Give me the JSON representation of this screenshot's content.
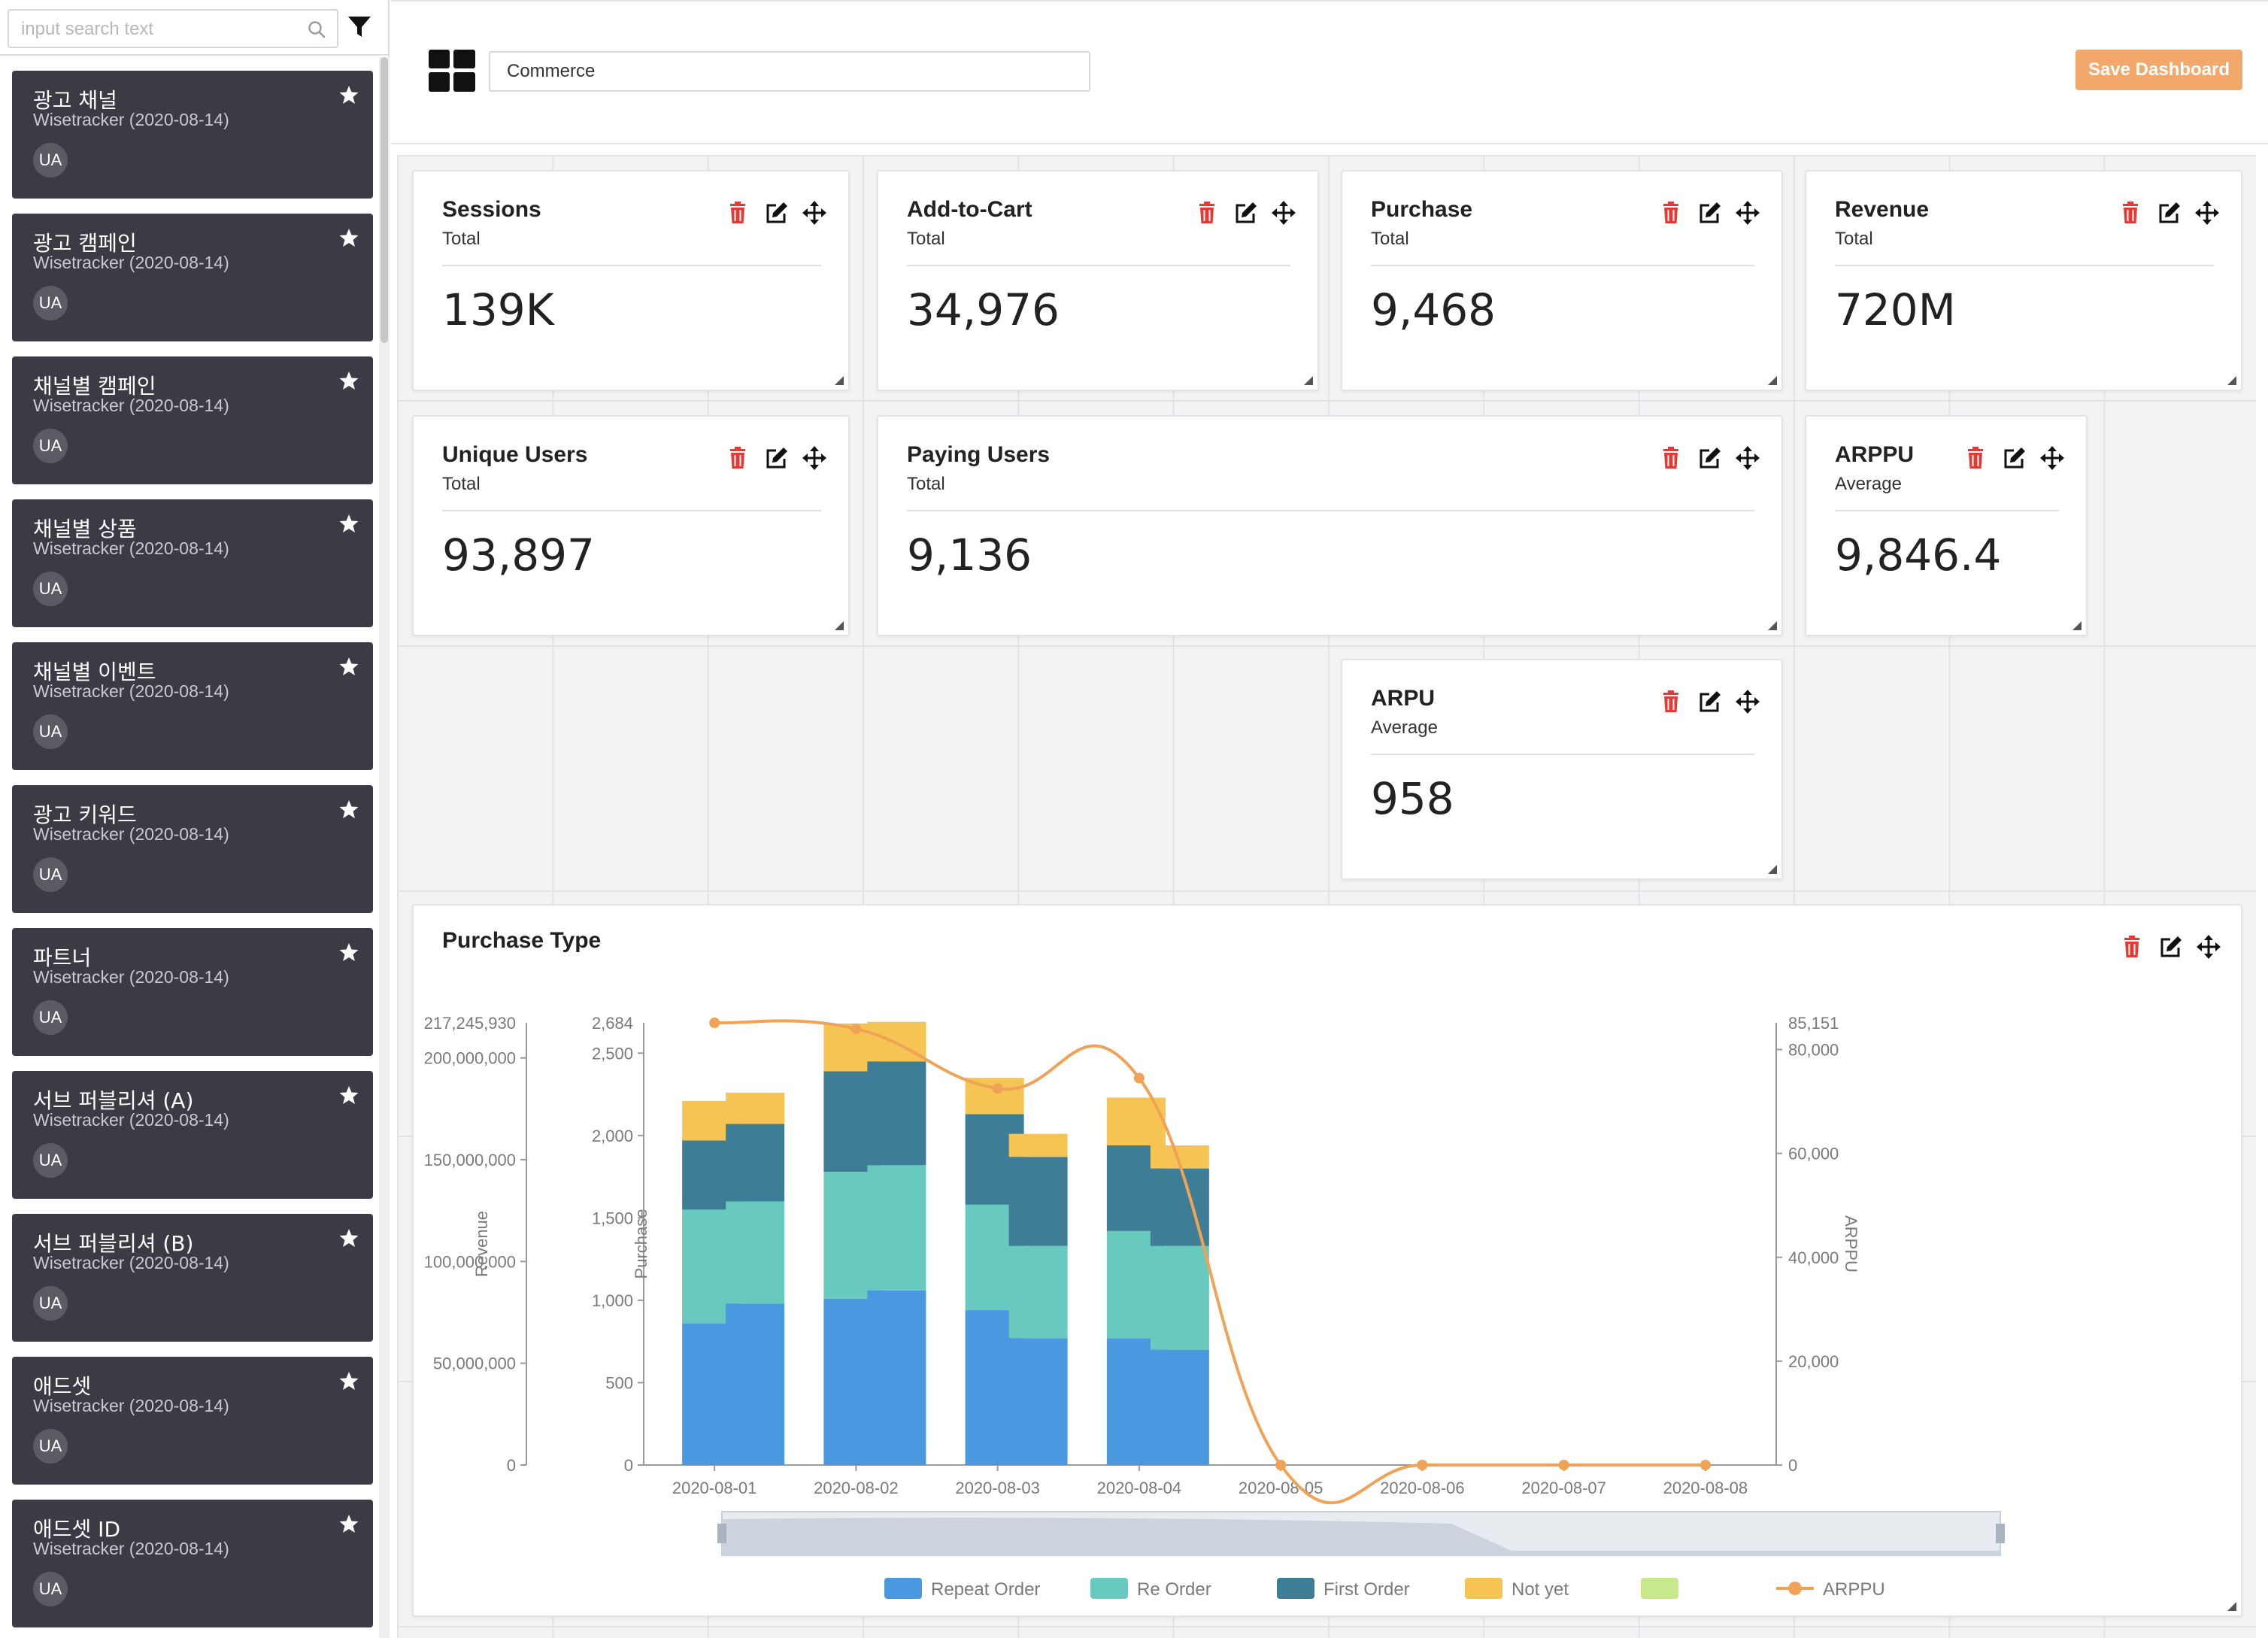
{
  "sidebar": {
    "search_placeholder": "input search text",
    "search_value": "",
    "icons": {
      "search": "search-icon",
      "filter": "filter-icon"
    },
    "reports": [
      {
        "title": "광고 채널",
        "subtitle": "Wisetracker (2020-08-14)",
        "badge": "UA"
      },
      {
        "title": "광고 캠페인",
        "subtitle": "Wisetracker (2020-08-14)",
        "badge": "UA"
      },
      {
        "title": "채널별 캠페인",
        "subtitle": "Wisetracker (2020-08-14)",
        "badge": "UA"
      },
      {
        "title": "채널별 상품",
        "subtitle": "Wisetracker (2020-08-14)",
        "badge": "UA"
      },
      {
        "title": "채널별 이벤트",
        "subtitle": "Wisetracker (2020-08-14)",
        "badge": "UA"
      },
      {
        "title": "광고 키워드",
        "subtitle": "Wisetracker (2020-08-14)",
        "badge": "UA"
      },
      {
        "title": "파트너",
        "subtitle": "Wisetracker (2020-08-14)",
        "badge": "UA"
      },
      {
        "title": "서브 퍼블리셔 (A)",
        "subtitle": "Wisetracker (2020-08-14)",
        "badge": "UA"
      },
      {
        "title": "서브 퍼블리셔 (B)",
        "subtitle": "Wisetracker (2020-08-14)",
        "badge": "UA"
      },
      {
        "title": "애드셋",
        "subtitle": "Wisetracker (2020-08-14)",
        "badge": "UA"
      },
      {
        "title": "애드셋 ID",
        "subtitle": "Wisetracker (2020-08-14)",
        "badge": "UA"
      }
    ]
  },
  "header": {
    "dashboard_name": "Commerce",
    "save_label": "Save Dashboard",
    "accent_color": "#f3a86b"
  },
  "widgets": [
    {
      "title": "Sessions",
      "subtitle": "Total",
      "value": "139K"
    },
    {
      "title": "Add-to-Cart",
      "subtitle": "Total",
      "value": "34,976"
    },
    {
      "title": "Purchase",
      "subtitle": "Total",
      "value": "9,468"
    },
    {
      "title": "Revenue",
      "subtitle": "Total",
      "value": "720M"
    },
    {
      "title": "Unique Users",
      "subtitle": "Total",
      "value": "93,897"
    },
    {
      "title": "Paying Users",
      "subtitle": "Total",
      "value": "9,136"
    },
    {
      "title": "ARPPU",
      "subtitle": "Average",
      "value": "9,846.4"
    },
    {
      "title": "ARPU",
      "subtitle": "Average",
      "value": "958"
    }
  ],
  "widget_actions": {
    "delete": "trash-icon",
    "edit": "edit-icon",
    "move": "move-icon",
    "delete_color": "#e53935"
  },
  "chart_widget": {
    "title": "Purchase Type"
  },
  "chart_data": {
    "type": "bar",
    "title": "Purchase Type",
    "stacked": true,
    "x": [
      "2020-08-01",
      "2020-08-02",
      "2020-08-03",
      "2020-08-04",
      "2020-08-05",
      "2020-08-06",
      "2020-08-07",
      "2020-08-08"
    ],
    "bar_groups_per_date": 2,
    "series": [
      {
        "name": "Repeat Order",
        "color": "#4a98e0",
        "values": [
          860,
          980,
          1010,
          1060,
          940,
          770,
          770,
          700
        ]
      },
      {
        "name": "Re Order",
        "color": "#68c9be",
        "values": [
          690,
          620,
          770,
          760,
          640,
          560,
          650,
          630
        ]
      },
      {
        "name": "First Order",
        "color": "#3d7e96",
        "values": [
          420,
          470,
          610,
          630,
          550,
          540,
          520,
          470
        ]
      },
      {
        "name": "Not yet",
        "color": "#f6c452",
        "values": [
          240,
          190,
          290,
          240,
          220,
          140,
          290,
          140
        ]
      },
      {
        "name": "",
        "color": "#c8e88c",
        "values": [
          0,
          0,
          0,
          0,
          0,
          0,
          0,
          0
        ]
      }
    ],
    "line_series": {
      "name": "ARPPU",
      "color": "#f0a256",
      "x": [
        "2020-08-01",
        "2020-08-02",
        "2020-08-03",
        "2020-08-04",
        "2020-08-05",
        "2020-08-06",
        "2020-08-07",
        "2020-08-08"
      ],
      "values": [
        85151,
        84000,
        72500,
        74500,
        0,
        0,
        0,
        0
      ]
    },
    "y_left_revenue": {
      "label": "Revenue",
      "ticks": [
        "0",
        "50,000,000",
        "100,000,000",
        "150,000,000",
        "200,000,000"
      ],
      "max_label": "217,245,930",
      "max": 217245930
    },
    "y_left_purchase": {
      "label": "Purchase",
      "ticks": [
        "0",
        "500",
        "1,000",
        "1,500",
        "2,000",
        "2,500"
      ],
      "max_label": "2,684",
      "max": 2684
    },
    "y_right": {
      "label": "ARPPU",
      "ticks": [
        "0",
        "20,000",
        "40,000",
        "60,000",
        "80,000"
      ],
      "max_label": "85,151",
      "max": 85151
    },
    "legend": [
      "Repeat Order",
      "Re Order",
      "First Order",
      "Not yet",
      "",
      "ARPPU"
    ],
    "legend_placement": "bottom",
    "grid": false
  }
}
